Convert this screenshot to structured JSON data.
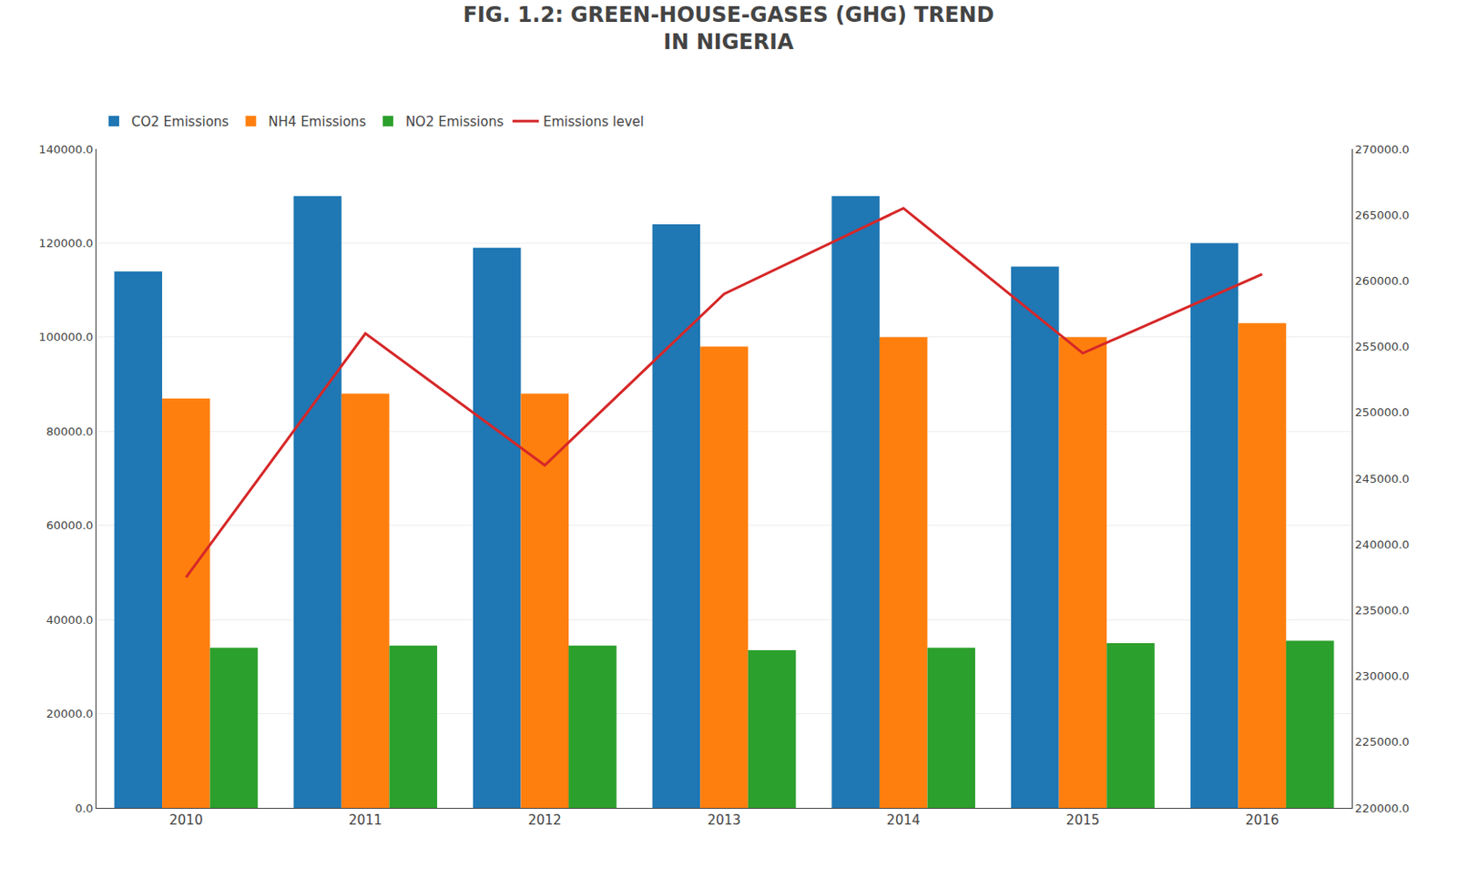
{
  "chart_data": {
    "type": "bar",
    "title": "FIG. 1.2: GREEN-HOUSE-GASES (GHG) TREND",
    "subtitle": "IN NIGERIA",
    "categories": [
      "2010",
      "2011",
      "2012",
      "2013",
      "2014",
      "2015",
      "2016"
    ],
    "series": [
      {
        "name": "CO2 Emissions",
        "values": [
          114000,
          130000,
          119000,
          124000,
          130000,
          115000,
          120000
        ]
      },
      {
        "name": "NH4 Emissions",
        "values": [
          87000,
          88000,
          88000,
          98000,
          100000,
          100000,
          103000
        ]
      },
      {
        "name": "NO2 Emissions",
        "values": [
          34000,
          34500,
          34500,
          33500,
          34000,
          35000,
          35500
        ]
      },
      {
        "name": "Emissions level",
        "type": "line",
        "axis": "y2",
        "values": [
          237500,
          256000,
          246000,
          259000,
          265500,
          254500,
          260500
        ]
      }
    ],
    "ylim": [
      0,
      140000
    ],
    "yticks": [
      {
        "value": 0,
        "label": "0.0"
      },
      {
        "value": 20000,
        "label": "20000.0"
      },
      {
        "value": 40000,
        "label": "40000.0"
      },
      {
        "value": 60000,
        "label": "60000.0"
      },
      {
        "value": 80000,
        "label": "80000.0"
      },
      {
        "value": 100000,
        "label": "100000.0"
      },
      {
        "value": 120000,
        "label": "120000.0"
      },
      {
        "value": 140000,
        "label": "140000.0"
      }
    ],
    "y2lim": [
      220000,
      270000
    ],
    "y2ticks": [
      {
        "value": 220000,
        "label": "220000.0"
      },
      {
        "value": 225000,
        "label": "225000.0"
      },
      {
        "value": 230000,
        "label": "230000.0"
      },
      {
        "value": 235000,
        "label": "235000.0"
      },
      {
        "value": 240000,
        "label": "240000.0"
      },
      {
        "value": 245000,
        "label": "245000.0"
      },
      {
        "value": 250000,
        "label": "250000.0"
      },
      {
        "value": 255000,
        "label": "255000.0"
      },
      {
        "value": 260000,
        "label": "260000.0"
      },
      {
        "value": 265000,
        "label": "265000.0"
      },
      {
        "value": 270000,
        "label": "270000.0"
      }
    ],
    "grid": true,
    "legend": "top"
  }
}
